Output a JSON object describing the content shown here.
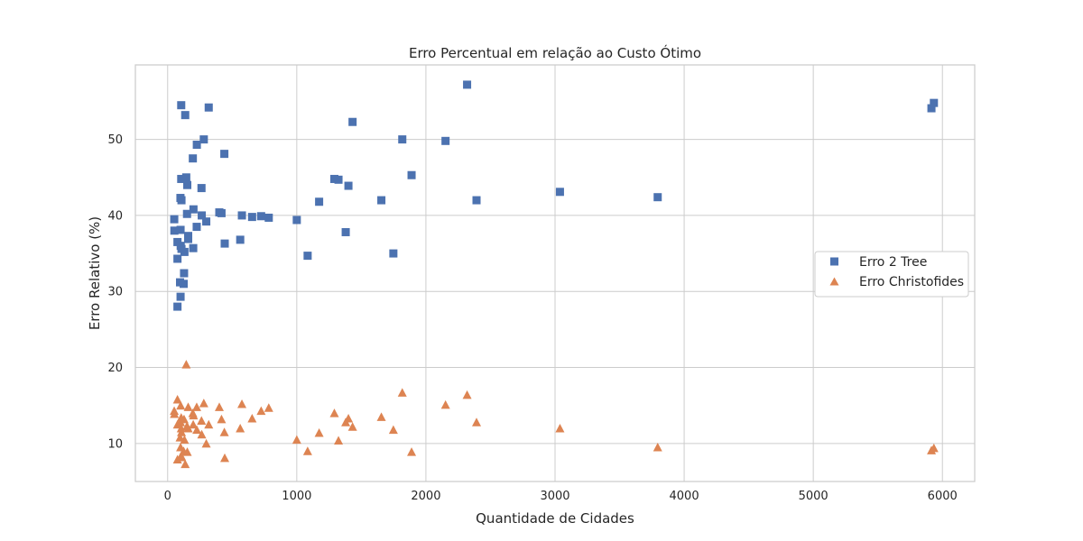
{
  "chart_data": {
    "type": "scatter",
    "title": "Erro Percentual em relação ao Custo Ótimo",
    "xlabel": "Quantidade de Cidades",
    "ylabel": "Erro Relativo (%)",
    "xlim": [
      -250,
      6250
    ],
    "ylim": [
      5,
      59.8
    ],
    "x_ticks": [
      0,
      1000,
      2000,
      3000,
      4000,
      5000,
      6000
    ],
    "y_ticks": [
      10,
      20,
      30,
      40,
      50
    ],
    "grid": true,
    "legend_position": "center-right",
    "series": [
      {
        "name": "Erro 2 Tree",
        "marker": "square",
        "color": "#4c72b0",
        "points": [
          [
            51,
            39.5
          ],
          [
            52,
            38.0
          ],
          [
            76,
            28.0
          ],
          [
            76,
            34.3
          ],
          [
            76,
            36.5
          ],
          [
            96,
            31.2
          ],
          [
            99,
            42.3
          ],
          [
            100,
            29.3
          ],
          [
            100,
            38.1
          ],
          [
            101,
            36.0
          ],
          [
            105,
            44.8
          ],
          [
            105,
            54.5
          ],
          [
            107,
            42.0
          ],
          [
            107,
            35.6
          ],
          [
            124,
            31.0
          ],
          [
            127,
            32.4
          ],
          [
            130,
            35.2
          ],
          [
            136,
            53.2
          ],
          [
            144,
            45.0
          ],
          [
            150,
            40.2
          ],
          [
            152,
            44.0
          ],
          [
            159,
            37.3
          ],
          [
            159,
            36.9
          ],
          [
            195,
            47.5
          ],
          [
            198,
            35.7
          ],
          [
            200,
            40.8
          ],
          [
            225,
            38.5
          ],
          [
            226,
            49.3
          ],
          [
            262,
            43.6
          ],
          [
            264,
            40.0
          ],
          [
            280,
            50.0
          ],
          [
            299,
            39.2
          ],
          [
            318,
            54.2
          ],
          [
            400,
            40.4
          ],
          [
            417,
            40.3
          ],
          [
            439,
            48.1
          ],
          [
            442,
            36.3
          ],
          [
            562,
            36.8
          ],
          [
            575,
            40.0
          ],
          [
            654,
            39.8
          ],
          [
            724,
            39.9
          ],
          [
            783,
            39.7
          ],
          [
            1000,
            39.4
          ],
          [
            1084,
            34.7
          ],
          [
            1173,
            41.8
          ],
          [
            1291,
            44.8
          ],
          [
            1323,
            44.7
          ],
          [
            1379,
            37.8
          ],
          [
            1400,
            43.9
          ],
          [
            1432,
            52.3
          ],
          [
            1655,
            42.0
          ],
          [
            1748,
            35.0
          ],
          [
            1817,
            50.0
          ],
          [
            1889,
            45.3
          ],
          [
            2152,
            49.8
          ],
          [
            2319,
            57.2
          ],
          [
            2392,
            42.0
          ],
          [
            3038,
            43.1
          ],
          [
            3795,
            42.4
          ],
          [
            5915,
            54.1
          ],
          [
            5934,
            54.8
          ]
        ]
      },
      {
        "name": "Erro Christofides",
        "marker": "triangle",
        "color": "#dd8452",
        "points": [
          [
            51,
            14.3
          ],
          [
            52,
            13.9
          ],
          [
            76,
            15.8
          ],
          [
            76,
            12.5
          ],
          [
            76,
            7.9
          ],
          [
            96,
            10.8
          ],
          [
            99,
            8.2
          ],
          [
            100,
            9.5
          ],
          [
            100,
            12.8
          ],
          [
            101,
            15.0
          ],
          [
            105,
            13.4
          ],
          [
            105,
            12.0
          ],
          [
            107,
            8.3
          ],
          [
            107,
            11.5
          ],
          [
            124,
            9.0
          ],
          [
            127,
            13.2
          ],
          [
            130,
            10.5
          ],
          [
            136,
            7.3
          ],
          [
            144,
            20.4
          ],
          [
            150,
            12.3
          ],
          [
            152,
            8.9
          ],
          [
            159,
            14.8
          ],
          [
            159,
            12.0
          ],
          [
            195,
            14.0
          ],
          [
            198,
            12.5
          ],
          [
            200,
            13.7
          ],
          [
            225,
            14.8
          ],
          [
            226,
            11.8
          ],
          [
            262,
            13.0
          ],
          [
            264,
            11.2
          ],
          [
            280,
            15.3
          ],
          [
            299,
            10.0
          ],
          [
            318,
            12.5
          ],
          [
            400,
            14.8
          ],
          [
            417,
            13.2
          ],
          [
            439,
            11.5
          ],
          [
            442,
            8.1
          ],
          [
            562,
            12.0
          ],
          [
            575,
            15.2
          ],
          [
            654,
            13.3
          ],
          [
            724,
            14.3
          ],
          [
            783,
            14.7
          ],
          [
            1000,
            10.5
          ],
          [
            1084,
            9.0
          ],
          [
            1173,
            11.4
          ],
          [
            1291,
            14.0
          ],
          [
            1323,
            10.4
          ],
          [
            1379,
            12.8
          ],
          [
            1400,
            13.3
          ],
          [
            1432,
            12.2
          ],
          [
            1655,
            13.5
          ],
          [
            1748,
            11.8
          ],
          [
            1817,
            16.7
          ],
          [
            1889,
            8.9
          ],
          [
            2152,
            15.1
          ],
          [
            2319,
            16.4
          ],
          [
            2392,
            12.8
          ],
          [
            3038,
            12.0
          ],
          [
            3795,
            9.5
          ],
          [
            5915,
            9.1
          ],
          [
            5934,
            9.4
          ]
        ]
      }
    ]
  }
}
